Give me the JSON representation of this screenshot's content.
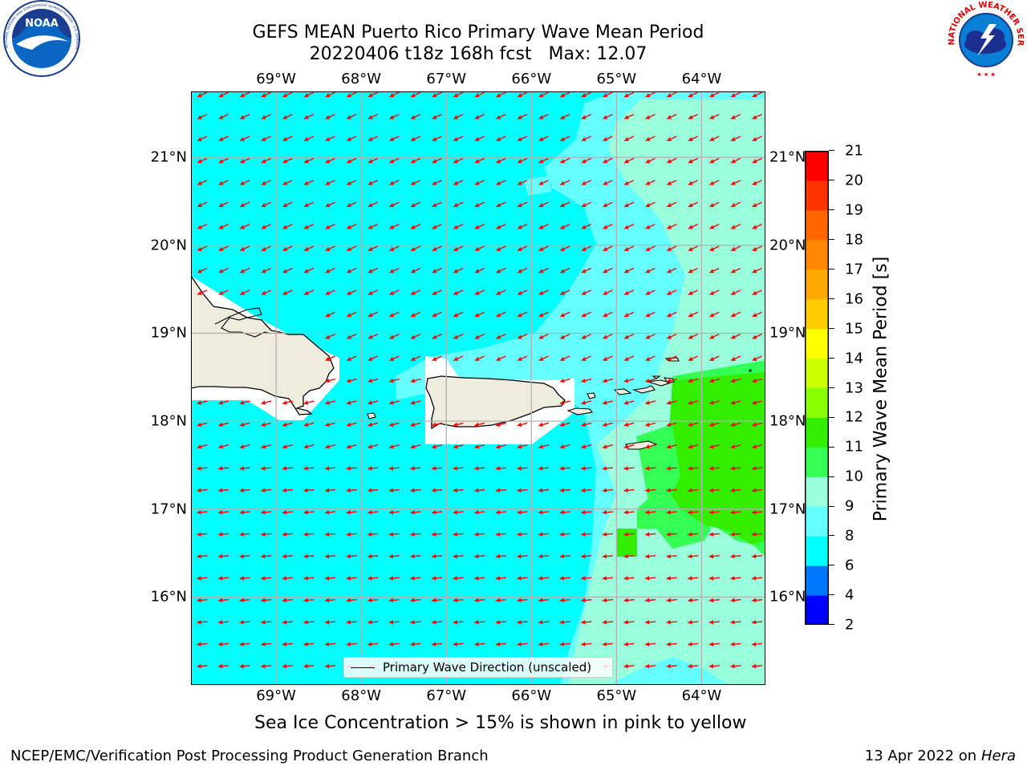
{
  "title": {
    "line1": "GEFS MEAN Puerto Rico Primary Wave Mean Period",
    "line2": "20220406 t18z 168h fcst   Max: 12.07"
  },
  "logos": {
    "left": {
      "name": "noaa-logo",
      "text": "NOAA",
      "ring_text": "NATIONAL OCEANIC AND ATMOSPHERIC ADMINISTRATION · U.S. DEPARTMENT OF COMMERCE"
    },
    "right": {
      "name": "nws-logo",
      "ring_text": "NATIONAL WEATHER SERVICE"
    }
  },
  "map": {
    "lon_labels": [
      "69°W",
      "68°W",
      "67°W",
      "66°W",
      "65°W",
      "64°W"
    ],
    "lat_labels": [
      "21°N",
      "20°N",
      "19°N",
      "18°N",
      "17°N",
      "16°N"
    ],
    "lon_range": [
      -70,
      -63.25
    ],
    "lat_range": [
      15,
      21.75
    ],
    "legend_label": "Primary Wave Direction (unscaled)",
    "colors": {
      "land": "#eeecdc",
      "ocean_6_8": "#00ffff",
      "ocean_8_9": "#66ffff",
      "ocean_9_10": "#99ffdd",
      "ocean_10_11": "#33ff55",
      "ocean_11_12": "#33ee00",
      "arrow": "#ff0000",
      "grid": "#b0b0b0"
    },
    "wave_direction": "from east-northeast (arrows pointing west-southwest)"
  },
  "colorbar": {
    "title": "Primary Wave Mean Period [s]",
    "levels": [
      2,
      4,
      6,
      8,
      9,
      10,
      11,
      12,
      13,
      14,
      15,
      16,
      17,
      18,
      19,
      20,
      21
    ],
    "colors": [
      "#0000ff",
      "#0077ff",
      "#00ffff",
      "#66ffff",
      "#99ffdd",
      "#33ff55",
      "#33ee00",
      "#88ff00",
      "#ccff00",
      "#ffff00",
      "#ffcc00",
      "#ffaa00",
      "#ff8800",
      "#ff6600",
      "#ff3300",
      "#ff0000"
    ]
  },
  "sea_ice_note": "Sea Ice Concentration > 15% is shown in pink to yellow",
  "footer": {
    "left": "NCEP/EMC/Verification Post Processing Product Generation Branch",
    "right_prefix": "13 Apr 2022 on ",
    "right_host": "Hera"
  }
}
